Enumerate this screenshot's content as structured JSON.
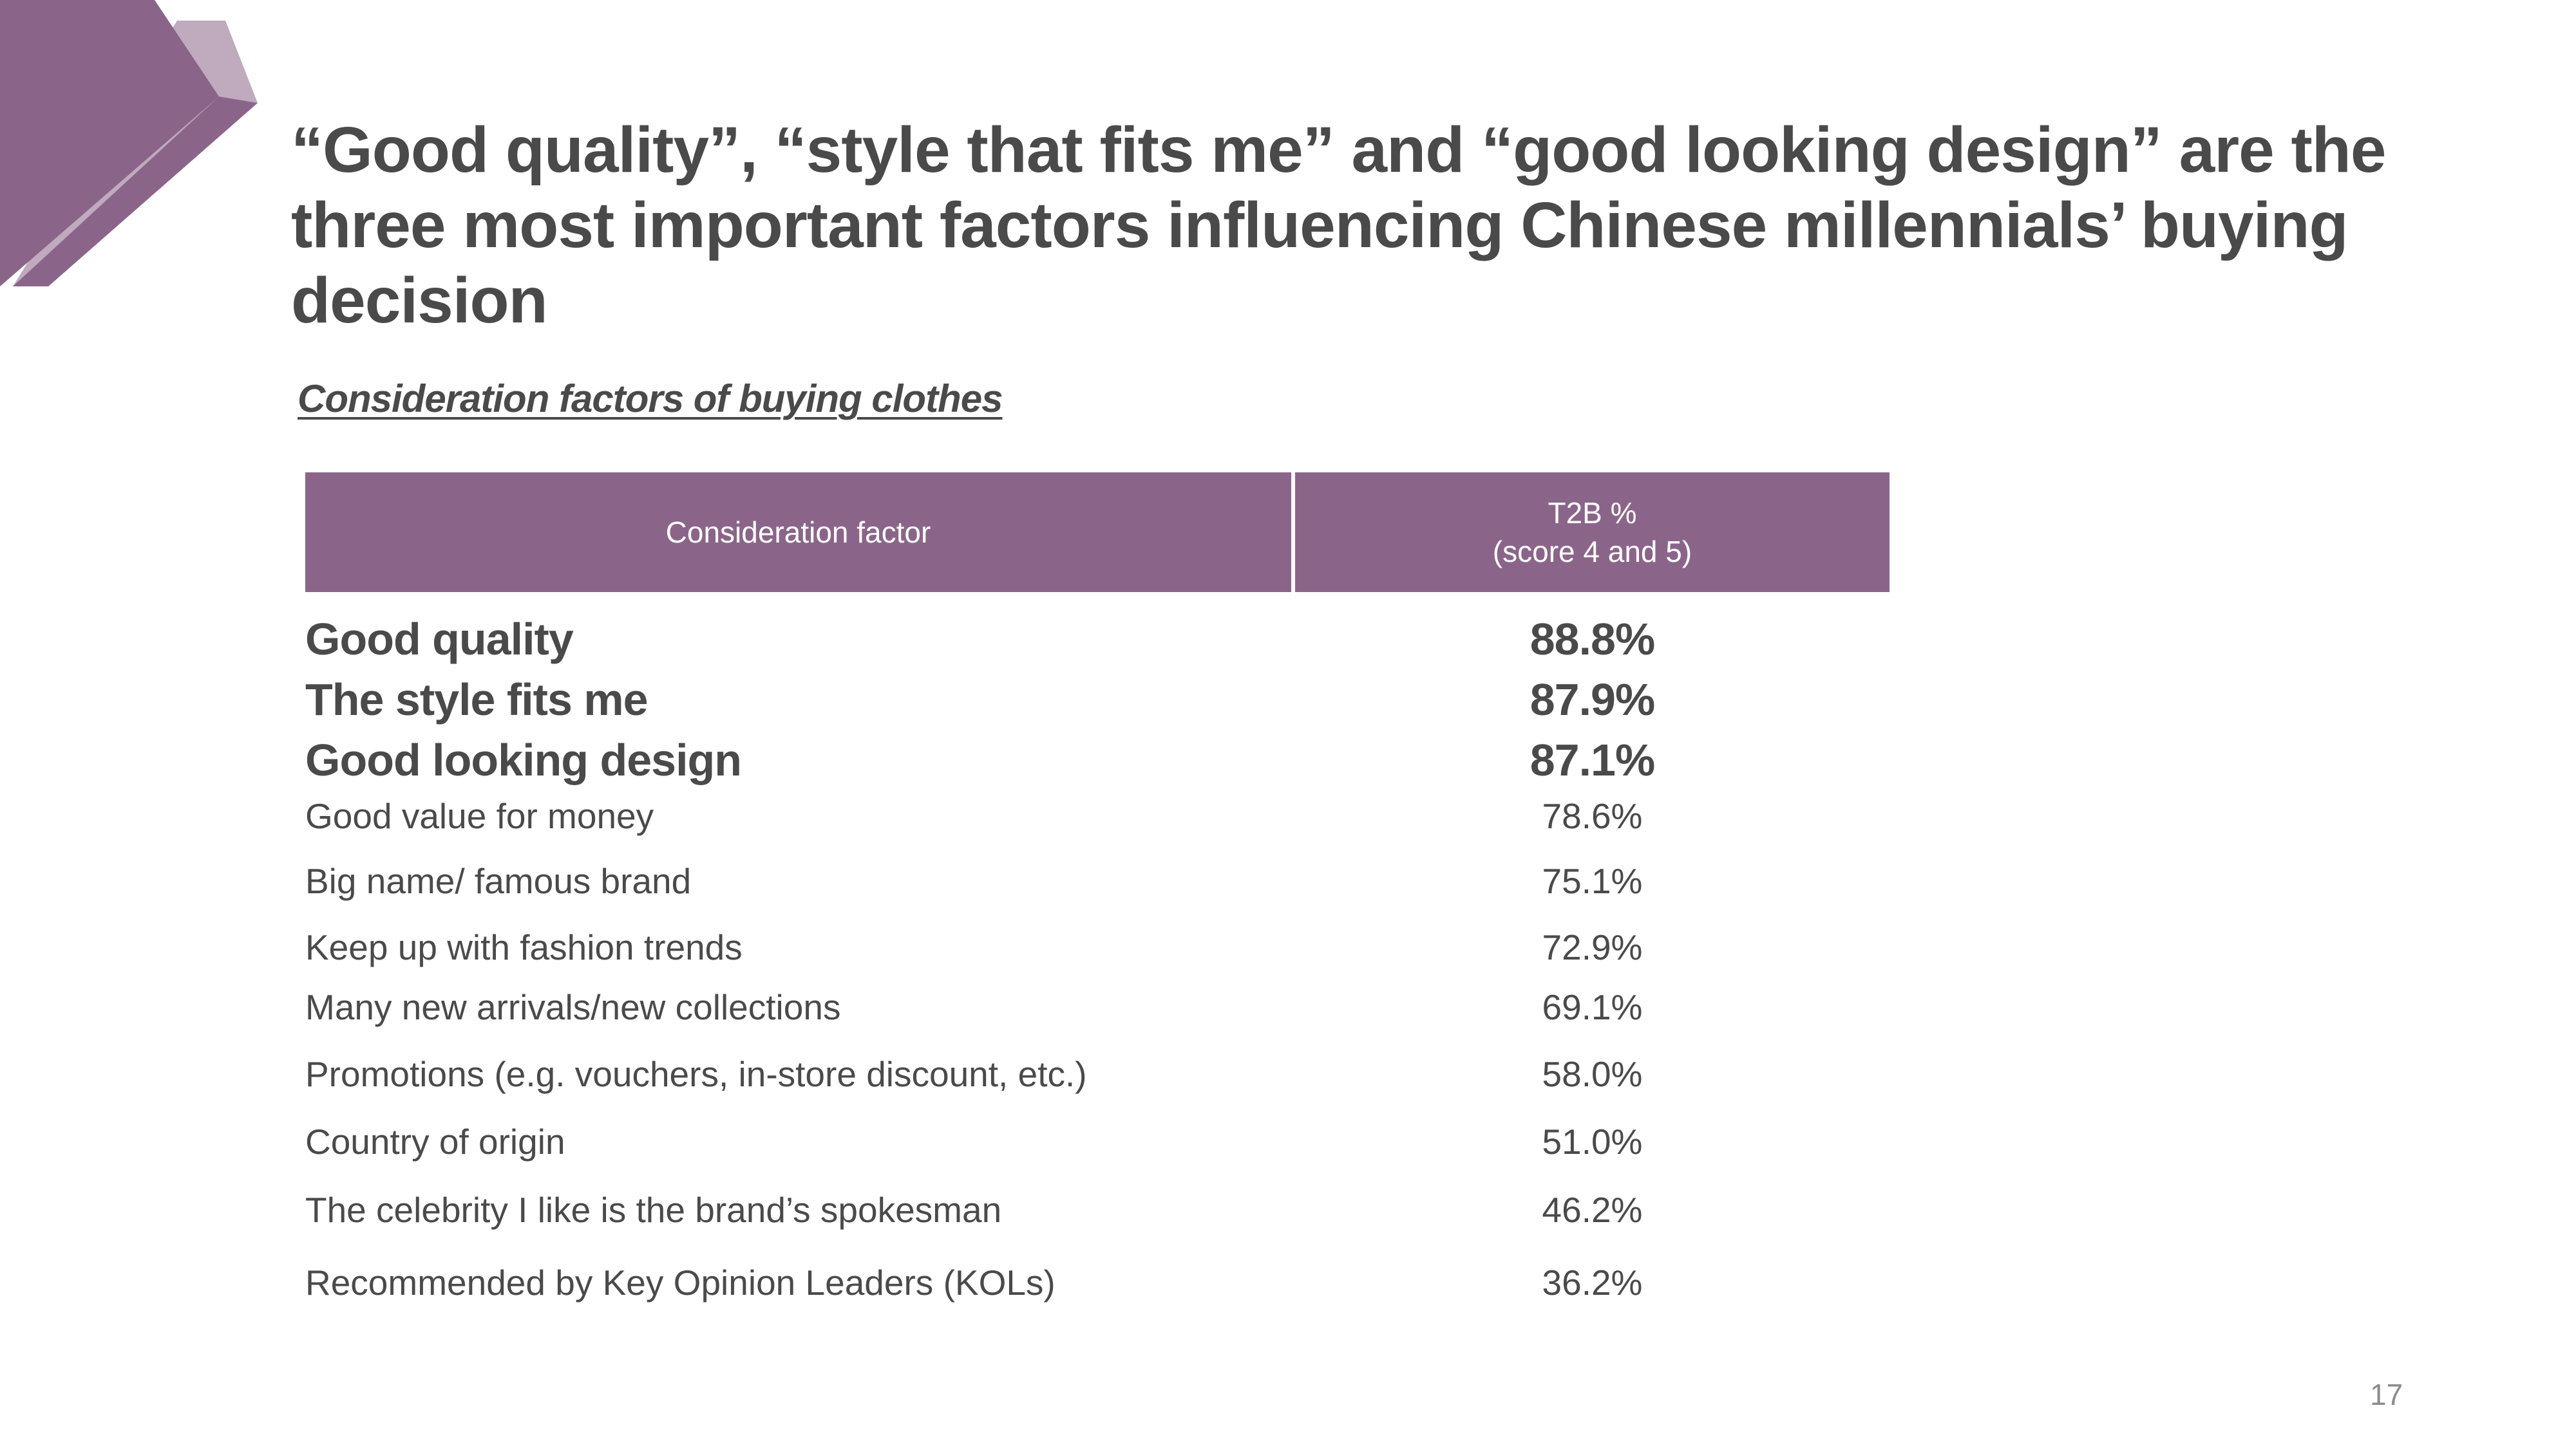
{
  "slide": {
    "title": "“Good quality”, “style that fits me” and “good looking design” are the three most important factors influencing Chinese millennials’ buying decision",
    "subtitle": "Consideration factors of buying clothes",
    "page_number": "17",
    "colors": {
      "accent": "#8a6589",
      "accent_light": "#c4a6c3",
      "text": "#4a4a4a"
    }
  },
  "table": {
    "header": {
      "factor": "Consideration factor",
      "value_line1": "T2B %",
      "value_line2": "(score 4 and 5)"
    },
    "rows": [
      {
        "factor": "Good quality",
        "value": "88.8%"
      },
      {
        "factor": "The style fits me",
        "value": "87.9%"
      },
      {
        "factor": "Good looking design",
        "value": "87.1%"
      },
      {
        "factor": "Good value for money",
        "value": "78.6%"
      },
      {
        "factor": "Big name/ famous brand",
        "value": "75.1%"
      },
      {
        "factor": "Keep up with fashion trends",
        "value": "72.9%"
      },
      {
        "factor": "Many new arrivals/new collections",
        "value": "69.1%"
      },
      {
        "factor": "Promotions (e.g. vouchers, in-store discount, etc.)",
        "value": "58.0%"
      },
      {
        "factor": "Country of origin",
        "value": "51.0%"
      },
      {
        "factor": "The celebrity I like is the brand’s spokesman",
        "value": "46.2%"
      },
      {
        "factor": "Recommended by Key Opinion Leaders (KOLs)",
        "value": "36.2%"
      }
    ]
  }
}
